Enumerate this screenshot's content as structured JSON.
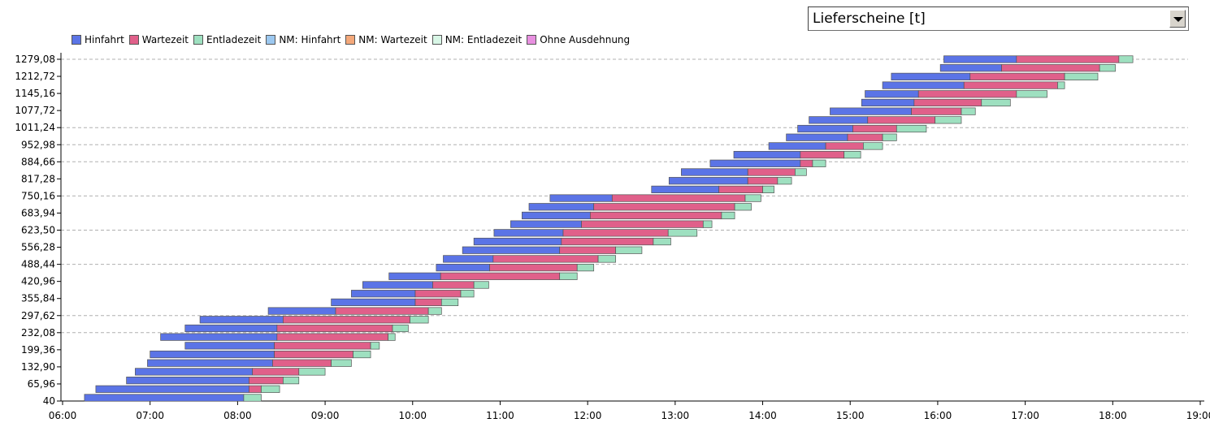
{
  "dropdown": {
    "value": "Lieferscheine [t]"
  },
  "legend": [
    {
      "label": "Hinfahrt",
      "color": "#5b74e6"
    },
    {
      "label": "Wartezeit",
      "color": "#e0608a"
    },
    {
      "label": "Entladezeit",
      "color": "#9ee0c0"
    },
    {
      "label": "NM: Hinfahrt",
      "color": "#9cc8f0"
    },
    {
      "label": "NM: Wartezeit",
      "color": "#f4a87a"
    },
    {
      "label": "NM: Entladezeit",
      "color": "#d8f6e6"
    },
    {
      "label": "Ohne Ausdehnung",
      "color": "#e890e0"
    }
  ],
  "chart_data": {
    "type": "bar",
    "orientation": "horizontal-stacked-timeline",
    "title": "",
    "xlabel": "",
    "ylabel": "",
    "x_ticks": [
      "06:00",
      "07:00",
      "08:00",
      "09:00",
      "10:00",
      "11:00",
      "12:00",
      "13:00",
      "14:00",
      "15:00",
      "16:00",
      "17:00",
      "18:00",
      "19:00"
    ],
    "x_range_hours": [
      6,
      19
    ],
    "y_ticks": [
      "1279,08",
      "1212,72",
      "1145,16",
      "1077,72",
      "1011,24",
      "952,98",
      "884,66",
      "817,28",
      "750,16",
      "683,94",
      "623,50",
      "556,28",
      "488,44",
      "420,96",
      "355,84",
      "297,62",
      "232,08",
      "199,36",
      "132,90",
      "65,96",
      "40"
    ],
    "dashed_grid_ticks": [
      "1279,08",
      "1011,24",
      "952,98",
      "884,66",
      "750,16",
      "623,50",
      "488,44",
      "297,62",
      "232,08"
    ],
    "grid": true,
    "legend_position": "top-left",
    "colors": {
      "hinfahrt": "#5b74e6",
      "wartezeit": "#e0608a",
      "entladezeit": "#9ee0c0"
    },
    "series_order": [
      "Hinfahrt",
      "Wartezeit",
      "Entladezeit"
    ],
    "trips": [
      [
        6.25,
        8.07,
        8.07,
        8.27
      ],
      [
        6.38,
        8.13,
        8.27,
        8.48
      ],
      [
        6.73,
        8.13,
        8.52,
        8.7
      ],
      [
        6.83,
        8.17,
        8.7,
        9.0
      ],
      [
        6.97,
        8.4,
        9.07,
        9.3
      ],
      [
        7.0,
        8.42,
        9.32,
        9.52
      ],
      [
        7.4,
        8.42,
        9.52,
        9.62
      ],
      [
        7.12,
        8.45,
        9.72,
        9.8
      ],
      [
        7.4,
        8.45,
        9.77,
        9.95
      ],
      [
        7.57,
        8.52,
        9.97,
        10.18
      ],
      [
        8.35,
        9.12,
        10.18,
        10.33
      ],
      [
        9.07,
        10.03,
        10.33,
        10.52
      ],
      [
        9.3,
        10.03,
        10.55,
        10.7
      ],
      [
        9.43,
        10.23,
        10.7,
        10.87
      ],
      [
        9.73,
        10.32,
        11.68,
        11.88
      ],
      [
        10.27,
        10.88,
        11.88,
        12.07
      ],
      [
        10.35,
        10.92,
        12.12,
        12.32
      ],
      [
        10.57,
        11.68,
        12.32,
        12.62
      ],
      [
        10.7,
        11.7,
        12.75,
        12.95
      ],
      [
        10.93,
        11.72,
        12.92,
        13.25
      ],
      [
        11.12,
        11.93,
        13.32,
        13.42
      ],
      [
        11.25,
        12.03,
        13.53,
        13.68
      ],
      [
        11.33,
        12.07,
        13.68,
        13.87
      ],
      [
        11.57,
        12.28,
        13.8,
        13.98
      ],
      [
        12.73,
        13.5,
        14.0,
        14.13
      ],
      [
        12.93,
        13.83,
        14.17,
        14.33
      ],
      [
        13.07,
        13.83,
        14.37,
        14.5
      ],
      [
        13.4,
        14.43,
        14.57,
        14.72
      ],
      [
        13.67,
        14.43,
        14.93,
        15.12
      ],
      [
        14.07,
        14.72,
        15.15,
        15.37
      ],
      [
        14.27,
        14.97,
        15.37,
        15.53
      ],
      [
        14.4,
        15.03,
        15.53,
        15.87
      ],
      [
        14.53,
        15.2,
        15.97,
        16.27
      ],
      [
        14.77,
        15.7,
        16.27,
        16.43
      ],
      [
        15.13,
        15.73,
        16.5,
        16.83
      ],
      [
        15.17,
        15.78,
        16.9,
        17.25
      ],
      [
        15.37,
        16.3,
        17.37,
        17.45
      ],
      [
        15.47,
        16.37,
        17.45,
        17.83
      ],
      [
        16.03,
        16.73,
        17.85,
        18.03
      ],
      [
        16.07,
        16.9,
        18.07,
        18.23
      ]
    ]
  }
}
